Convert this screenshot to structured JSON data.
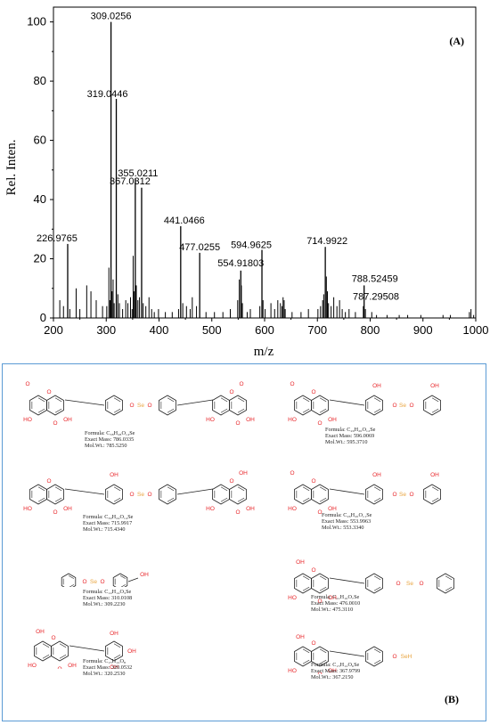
{
  "chart_data": {
    "type": "bar",
    "panel_label": "(A)",
    "xlabel": "m/z",
    "ylabel": "Rel. Inten.",
    "xlim": [
      200,
      1000
    ],
    "ylim": [
      0,
      105
    ],
    "xticks": [
      200,
      300,
      400,
      500,
      600,
      700,
      800,
      900,
      1000
    ],
    "yticks": [
      0,
      20,
      40,
      60,
      80,
      100
    ],
    "labeled_peaks": [
      {
        "mz": 226.9765,
        "label": "226.9765",
        "y": 25
      },
      {
        "mz": 309.0256,
        "label": "309.0256",
        "y": 100
      },
      {
        "mz": 319.0446,
        "label": "319.0446",
        "y": 74
      },
      {
        "mz": 355.0211,
        "label": "355.0211",
        "y": 47
      },
      {
        "mz": 367.0312,
        "label": "367.0312",
        "y": 44
      },
      {
        "mz": 441.0466,
        "label": "441.0466",
        "y": 31
      },
      {
        "mz": 477.0255,
        "label": "477.0255",
        "y": 22
      },
      {
        "mz": 554.91803,
        "label": "554.91803",
        "y": 16
      },
      {
        "mz": 594.9625,
        "label": "594.9625",
        "y": 23
      },
      {
        "mz": 714.9922,
        "label": "714.9922",
        "y": 24
      },
      {
        "mz": 788.52459,
        "label": "788.52459",
        "y": 11
      },
      {
        "mz": 787.29508,
        "label": "787.29508",
        "y": 4
      }
    ],
    "minor_peaks": [
      {
        "mz": 212,
        "y": 6
      },
      {
        "mz": 219,
        "y": 4
      },
      {
        "mz": 231,
        "y": 3
      },
      {
        "mz": 243,
        "y": 10
      },
      {
        "mz": 250,
        "y": 3
      },
      {
        "mz": 263,
        "y": 11
      },
      {
        "mz": 271,
        "y": 9
      },
      {
        "mz": 281,
        "y": 6
      },
      {
        "mz": 293,
        "y": 4
      },
      {
        "mz": 301,
        "y": 4
      },
      {
        "mz": 305,
        "y": 17
      },
      {
        "mz": 307,
        "y": 6
      },
      {
        "mz": 311,
        "y": 9
      },
      {
        "mz": 313,
        "y": 13
      },
      {
        "mz": 315,
        "y": 5
      },
      {
        "mz": 322,
        "y": 8
      },
      {
        "mz": 325,
        "y": 5
      },
      {
        "mz": 331,
        "y": 3
      },
      {
        "mz": 337,
        "y": 6
      },
      {
        "mz": 341,
        "y": 5
      },
      {
        "mz": 346,
        "y": 7
      },
      {
        "mz": 349,
        "y": 3
      },
      {
        "mz": 351,
        "y": 21
      },
      {
        "mz": 353,
        "y": 9
      },
      {
        "mz": 357,
        "y": 11
      },
      {
        "mz": 360,
        "y": 6
      },
      {
        "mz": 363,
        "y": 7
      },
      {
        "mz": 370,
        "y": 5
      },
      {
        "mz": 375,
        "y": 4
      },
      {
        "mz": 381,
        "y": 7
      },
      {
        "mz": 386,
        "y": 3
      },
      {
        "mz": 391,
        "y": 2
      },
      {
        "mz": 399,
        "y": 3
      },
      {
        "mz": 412,
        "y": 2
      },
      {
        "mz": 425,
        "y": 2
      },
      {
        "mz": 437,
        "y": 3
      },
      {
        "mz": 445,
        "y": 5
      },
      {
        "mz": 452,
        "y": 4
      },
      {
        "mz": 459,
        "y": 3
      },
      {
        "mz": 463,
        "y": 7
      },
      {
        "mz": 471,
        "y": 4
      },
      {
        "mz": 489,
        "y": 2
      },
      {
        "mz": 505,
        "y": 2
      },
      {
        "mz": 521,
        "y": 2
      },
      {
        "mz": 535,
        "y": 3
      },
      {
        "mz": 549,
        "y": 6
      },
      {
        "mz": 552,
        "y": 13
      },
      {
        "mz": 556,
        "y": 11
      },
      {
        "mz": 558,
        "y": 5
      },
      {
        "mz": 567,
        "y": 2
      },
      {
        "mz": 573,
        "y": 3
      },
      {
        "mz": 591,
        "y": 4
      },
      {
        "mz": 597,
        "y": 6
      },
      {
        "mz": 601,
        "y": 3
      },
      {
        "mz": 612,
        "y": 5
      },
      {
        "mz": 619,
        "y": 3
      },
      {
        "mz": 625,
        "y": 6
      },
      {
        "mz": 630,
        "y": 5
      },
      {
        "mz": 633,
        "y": 4
      },
      {
        "mz": 635,
        "y": 7
      },
      {
        "mz": 637,
        "y": 6
      },
      {
        "mz": 639,
        "y": 3
      },
      {
        "mz": 652,
        "y": 2
      },
      {
        "mz": 669,
        "y": 2
      },
      {
        "mz": 683,
        "y": 3
      },
      {
        "mz": 701,
        "y": 3
      },
      {
        "mz": 706,
        "y": 4
      },
      {
        "mz": 710,
        "y": 6
      },
      {
        "mz": 712,
        "y": 8
      },
      {
        "mz": 717,
        "y": 14
      },
      {
        "mz": 719,
        "y": 9
      },
      {
        "mz": 721,
        "y": 5
      },
      {
        "mz": 726,
        "y": 4
      },
      {
        "mz": 731,
        "y": 7
      },
      {
        "mz": 737,
        "y": 4
      },
      {
        "mz": 742,
        "y": 6
      },
      {
        "mz": 747,
        "y": 3
      },
      {
        "mz": 753,
        "y": 2
      },
      {
        "mz": 760,
        "y": 3
      },
      {
        "mz": 772,
        "y": 2
      },
      {
        "mz": 791,
        "y": 3
      },
      {
        "mz": 803,
        "y": 2
      },
      {
        "mz": 812,
        "y": 1
      },
      {
        "mz": 832,
        "y": 1
      },
      {
        "mz": 855,
        "y": 1
      },
      {
        "mz": 871,
        "y": 1
      },
      {
        "mz": 896,
        "y": 1
      },
      {
        "mz": 938,
        "y": 1
      },
      {
        "mz": 952,
        "y": 1
      },
      {
        "mz": 988,
        "y": 2
      },
      {
        "mz": 991,
        "y": 3
      },
      {
        "mz": 996,
        "y": 1
      }
    ]
  },
  "panel_b": {
    "panel_label": "(B)",
    "structures": [
      {
        "id": "s1",
        "formula": "Formula: C₃₈H₂₈O₁₄Se",
        "exact_mass": "Exact Mass: 786.0335",
        "mol_wt": "Mol.Wt.: 785.5250"
      },
      {
        "id": "s2",
        "formula": "Formula: C₂₆H₂₀O₁₂Se",
        "exact_mass": "Exact Mass: 596.0069",
        "mol_wt": "Mol.Wt.: 595.3710"
      },
      {
        "id": "s3",
        "formula": "Formula: C₃₀H₂₄O₁₄Se",
        "exact_mass": "Exact Mass: 715.9917",
        "mol_wt": "Mol.Wt.: 715.4340"
      },
      {
        "id": "s4",
        "formula": "Formula: C₂₆H₂₀O₁₁Se",
        "exact_mass": "Exact Mass: 553.9963",
        "mol_wt": "Mol.Wt.: 553.3340"
      },
      {
        "id": "s5",
        "formula": "Formula: C₁₄H₁₄O₃Se",
        "exact_mass": "Exact Mass: 310.0108",
        "mol_wt": "Mol.Wt.: 309.2230"
      },
      {
        "id": "s6",
        "formula": "Formula: C₂₁H₁₆O₇Se",
        "exact_mass": "Exact Mass: 476.0010",
        "mol_wt": "Mol.Wt.: 475.3110"
      },
      {
        "id": "s7",
        "formula": "Formula: C₁₅H₁₂O₈",
        "exact_mass": "Exact Mass: 320.0532",
        "mol_wt": "Mol.Wt.: 320.2530"
      },
      {
        "id": "s8",
        "formula": "Formula: C₁₅H₁₂O₆Se",
        "exact_mass": "Exact Mass: 367.9799",
        "mol_wt": "Mol.Wt.: 367.2150"
      }
    ],
    "atom_labels": {
      "hydroxyl": "OH",
      "hydroxyl_left": "HO",
      "oxygen": "O",
      "selenium": "Se",
      "selenol": "SeH"
    },
    "colors": {
      "frame": "#5b9bd5",
      "oxygen": "#e8262a",
      "selenium": "#e8a33d",
      "bond": "#222222"
    }
  }
}
